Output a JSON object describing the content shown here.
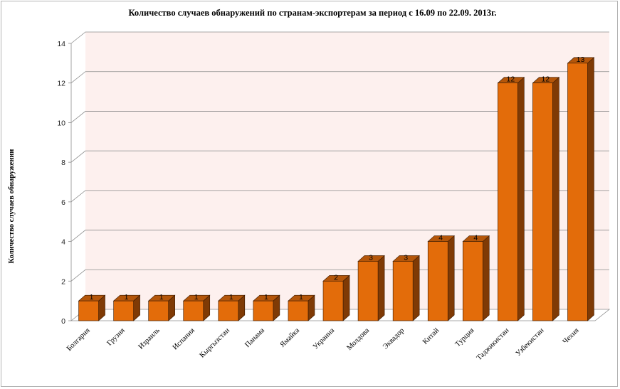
{
  "chart_data": {
    "type": "bar",
    "title": "Количество случаев обнаружений по странам-экспортерам за период с 16.09 по 22.09. 2013г.",
    "xlabel": "",
    "ylabel": "Количество случаев обнаружении",
    "ylim": [
      0,
      14
    ],
    "yticks": [
      0,
      2,
      4,
      6,
      8,
      10,
      12,
      14
    ],
    "grid": true,
    "legend": "none",
    "categories": [
      "Болгария",
      "Грузия",
      "Израиль",
      "Испания",
      "Кыргызстан",
      "Панама",
      "Ямайка",
      "Украина",
      "Молдова",
      "Эквадор",
      "Китай",
      "Турция",
      "Таджикистан",
      "Узбекистан",
      "Чехия"
    ],
    "values": [
      1,
      1,
      1,
      1,
      1,
      1,
      1,
      2,
      3,
      3,
      4,
      4,
      12,
      12,
      13
    ],
    "colors": {
      "bar_front": "#e36c0a",
      "bar_side": "#7f3a05",
      "bar_top": "#b4560a",
      "plot_back": "#fdf0ee",
      "grid": "#8c8c8c"
    }
  }
}
